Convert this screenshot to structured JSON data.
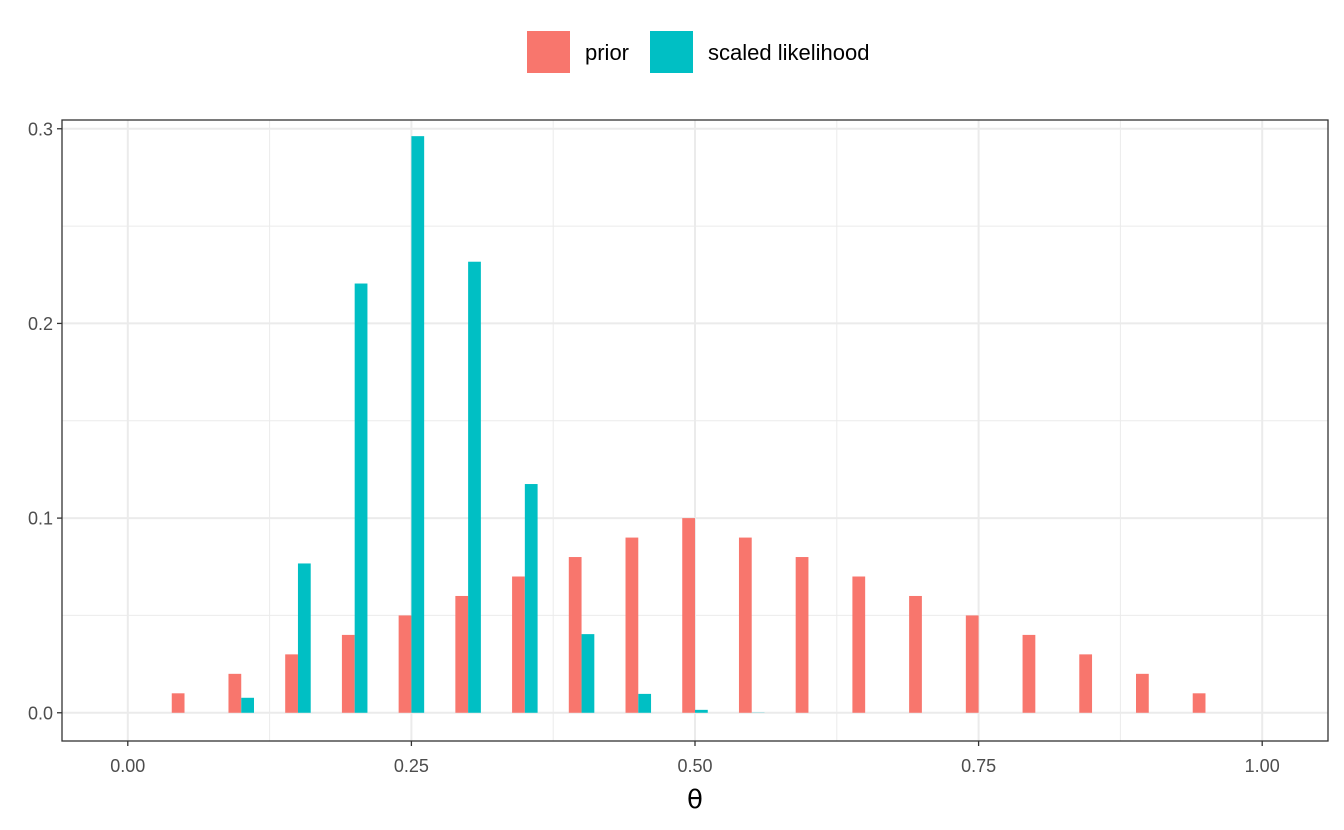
{
  "chart_data": {
    "type": "bar",
    "xlabel": "θ",
    "ylabel": "",
    "xlim": [
      -0.058,
      1.058
    ],
    "ylim": [
      -0.0145,
      0.3045
    ],
    "x_ticks": [
      0.0,
      0.25,
      0.5,
      0.75,
      1.0
    ],
    "x_tick_labels": [
      "0.00",
      "0.25",
      "0.50",
      "0.75",
      "1.00"
    ],
    "y_ticks": [
      0.0,
      0.1,
      0.2,
      0.3
    ],
    "y_tick_labels": [
      "0.0",
      "0.1",
      "0.2",
      "0.3"
    ],
    "grid": true,
    "legend_position": "top",
    "x": [
      0.0,
      0.05,
      0.1,
      0.15,
      0.2,
      0.25,
      0.3,
      0.35,
      0.4,
      0.45,
      0.5,
      0.55,
      0.6,
      0.65,
      0.7,
      0.75,
      0.8,
      0.85,
      0.9,
      0.95,
      1.0
    ],
    "series": [
      {
        "name": "prior",
        "color": "#F8766D",
        "values": [
          0.0,
          0.01,
          0.02,
          0.03,
          0.04,
          0.05,
          0.06,
          0.07,
          0.08,
          0.09,
          0.1,
          0.09,
          0.08,
          0.07,
          0.06,
          0.05,
          0.04,
          0.03,
          0.02,
          0.01,
          0.0
        ]
      },
      {
        "name": "scaled likelihood",
        "color": "#00BFC4",
        "values": [
          0.0,
          0.0,
          0.0077,
          0.0767,
          0.2205,
          0.2962,
          0.2317,
          0.1175,
          0.0404,
          0.0097,
          0.0015,
          0.0001,
          0.0,
          0.0,
          0.0,
          0.0,
          0.0,
          0.0,
          0.0,
          0.0,
          0.0
        ]
      }
    ]
  }
}
